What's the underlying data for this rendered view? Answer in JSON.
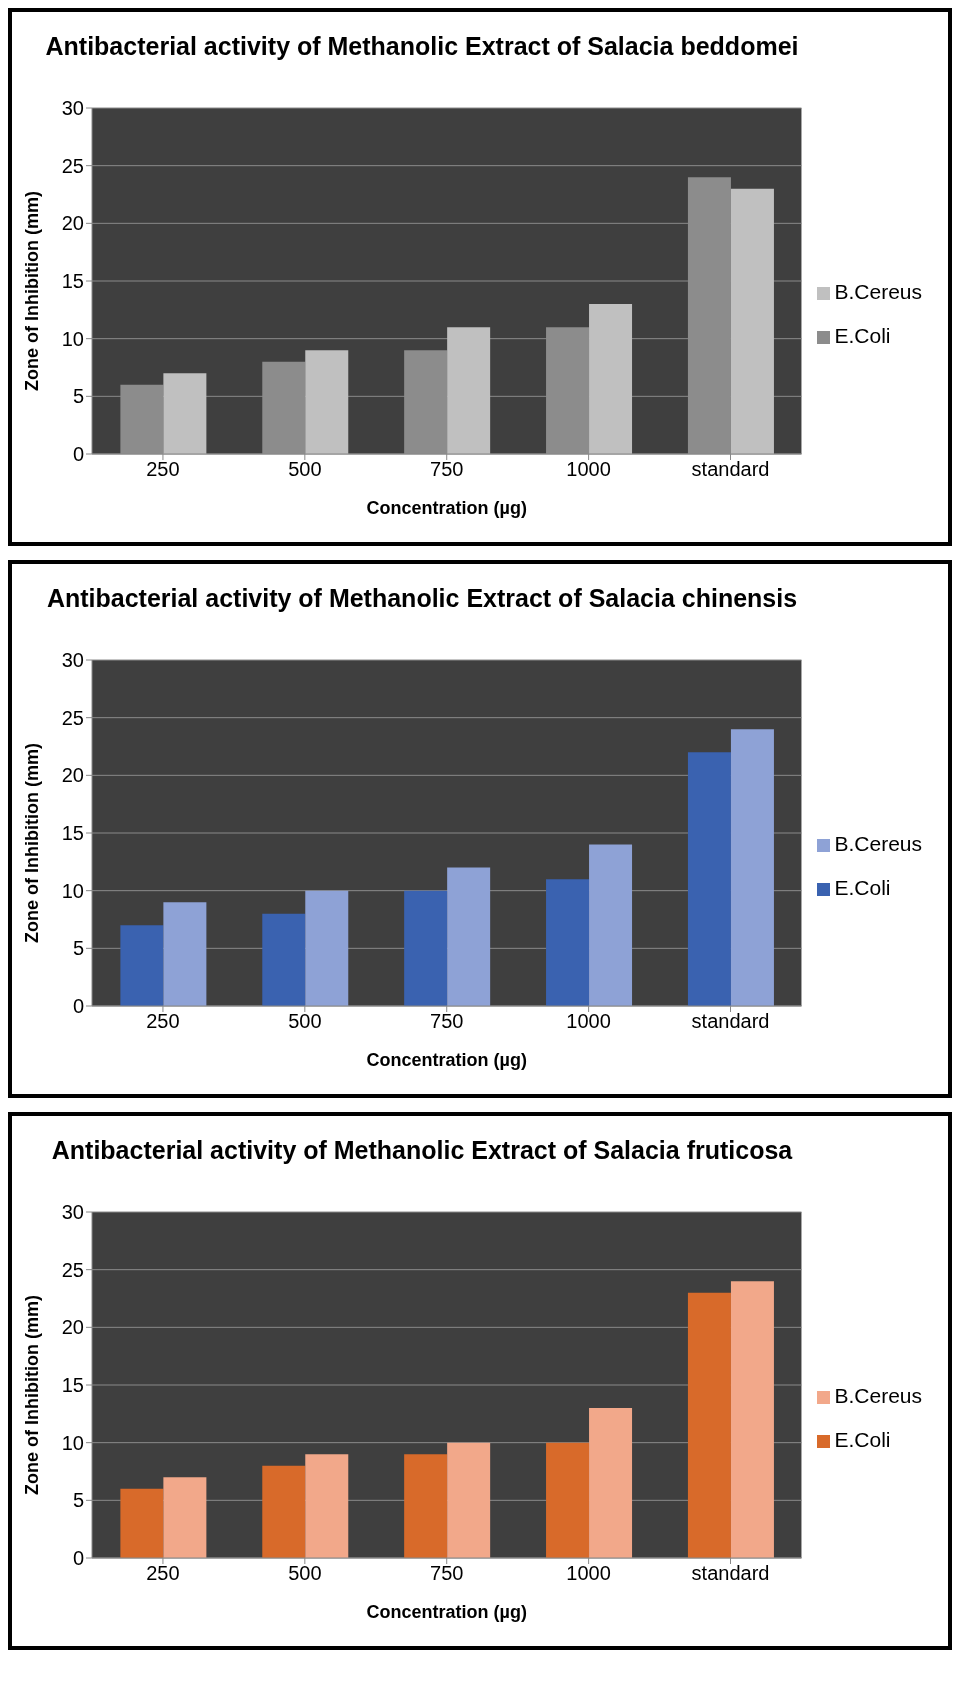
{
  "chart_data": [
    {
      "type": "bar",
      "title": "Antibacterial activity of Methanolic Extract of Salacia beddomei",
      "xlabel": "Concentration (µg)",
      "ylabel": "Zone of Inhibition (mm)",
      "categories": [
        "250",
        "500",
        "750",
        "1000",
        "standard"
      ],
      "series": [
        {
          "name": "E.Coli",
          "color": "#8c8c8c",
          "values": [
            6,
            8,
            9,
            11,
            24
          ]
        },
        {
          "name": "B.Cereus",
          "color": "#c0c0c0",
          "values": [
            7,
            9,
            11,
            13,
            23
          ]
        }
      ],
      "ylim": [
        0,
        30
      ],
      "yticks": [
        0,
        5,
        10,
        15,
        20,
        25,
        30
      ],
      "grid": "y",
      "legend": "right"
    },
    {
      "type": "bar",
      "title": "Antibacterial activity of Methanolic Extract of Salacia chinensis",
      "xlabel": "Concentration (µg)",
      "ylabel": "Zone of Inhibition (mm)",
      "categories": [
        "250",
        "500",
        "750",
        "1000",
        "standard"
      ],
      "series": [
        {
          "name": "E.Coli",
          "color": "#3a62b0",
          "values": [
            7,
            8,
            10,
            11,
            22
          ]
        },
        {
          "name": "B.Cereus",
          "color": "#8ea2d6",
          "values": [
            9,
            10,
            12,
            14,
            24
          ]
        }
      ],
      "ylim": [
        0,
        30
      ],
      "yticks": [
        0,
        5,
        10,
        15,
        20,
        25,
        30
      ],
      "grid": "y",
      "legend": "right"
    },
    {
      "type": "bar",
      "title": "Antibacterial activity of Methanolic Extract of Salacia fruticosa",
      "xlabel": "Concentration (µg)",
      "ylabel": "Zone of Inhibition (mm)",
      "categories": [
        "250",
        "500",
        "750",
        "1000",
        "standard"
      ],
      "series": [
        {
          "name": "E.Coli",
          "color": "#d86a2a",
          "values": [
            6,
            8,
            9,
            10,
            23
          ]
        },
        {
          "name": "B.Cereus",
          "color": "#f2a88a",
          "values": [
            7,
            9,
            10,
            13,
            24
          ]
        }
      ],
      "ylim": [
        0,
        30
      ],
      "yticks": [
        0,
        5,
        10,
        15,
        20,
        25,
        30
      ],
      "grid": "y",
      "legend": "right"
    }
  ]
}
